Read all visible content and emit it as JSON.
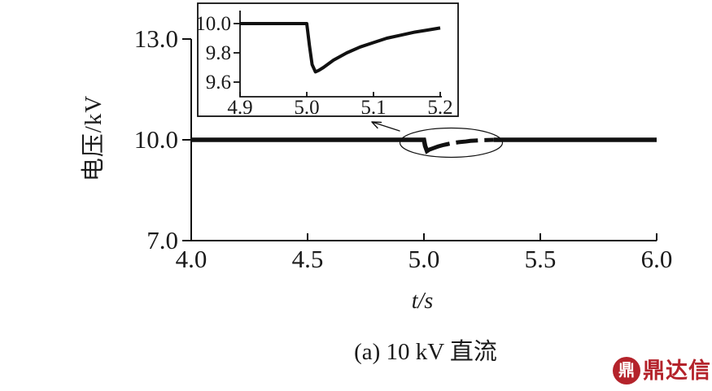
{
  "figure": {
    "ylabel": "电压/kV",
    "xlabel": "t/s",
    "caption": "(a) 10 kV 直流"
  },
  "logo": {
    "text": "鼎达信",
    "icon_char": "鼎",
    "color": "#b4232b"
  },
  "chart_data": {
    "type": "line",
    "title": "(a) 10 kV 直流",
    "xlabel": "t/s",
    "ylabel": "电压/kV",
    "xlim": [
      4.0,
      6.0
    ],
    "ylim": [
      7.0,
      13.0
    ],
    "xticks": [
      4.0,
      4.5,
      5.0,
      5.5,
      6.0
    ],
    "yticks": [
      7.0,
      10.0,
      13.0
    ],
    "grid": false,
    "legend": false,
    "line_color": "#111111",
    "series": [
      {
        "name": "10 kV DC voltage",
        "points": [
          [
            4.0,
            10.0
          ],
          [
            4.98,
            10.0
          ],
          [
            5.0,
            10.0
          ],
          [
            5.005,
            9.82
          ],
          [
            5.013,
            9.67
          ],
          [
            5.02,
            9.7
          ],
          [
            5.04,
            9.75
          ],
          [
            5.06,
            9.8
          ],
          [
            5.08,
            9.84
          ],
          [
            5.1,
            9.87
          ],
          [
            5.12,
            9.9
          ],
          [
            5.15,
            9.93
          ],
          [
            5.18,
            9.95
          ],
          [
            5.2,
            9.97
          ],
          [
            5.25,
            9.99
          ],
          [
            5.3,
            10.0
          ],
          [
            6.0,
            10.0
          ]
        ]
      }
    ],
    "annotations": {
      "dashed_range_t": [
        5.02,
        5.3
      ],
      "ellipse_region": {
        "t_center": 5.12,
        "v_center": 10.0,
        "note": "transient dip highlighted, arrow points to inset"
      }
    },
    "inset": {
      "xlim": [
        4.9,
        5.2
      ],
      "ylim": [
        9.5,
        10.05
      ],
      "xticks": [
        4.9,
        5.0,
        5.1,
        5.2
      ],
      "yticks": [
        9.6,
        9.8,
        10.0
      ],
      "points": [
        [
          4.9,
          10.0
        ],
        [
          4.99,
          10.0
        ],
        [
          5.0,
          10.0
        ],
        [
          5.004,
          9.85
        ],
        [
          5.008,
          9.72
        ],
        [
          5.013,
          9.67
        ],
        [
          5.018,
          9.68
        ],
        [
          5.025,
          9.7
        ],
        [
          5.04,
          9.75
        ],
        [
          5.06,
          9.8
        ],
        [
          5.08,
          9.84
        ],
        [
          5.1,
          9.87
        ],
        [
          5.12,
          9.9
        ],
        [
          5.14,
          9.92
        ],
        [
          5.16,
          9.94
        ],
        [
          5.18,
          9.955
        ],
        [
          5.2,
          9.97
        ]
      ]
    }
  }
}
